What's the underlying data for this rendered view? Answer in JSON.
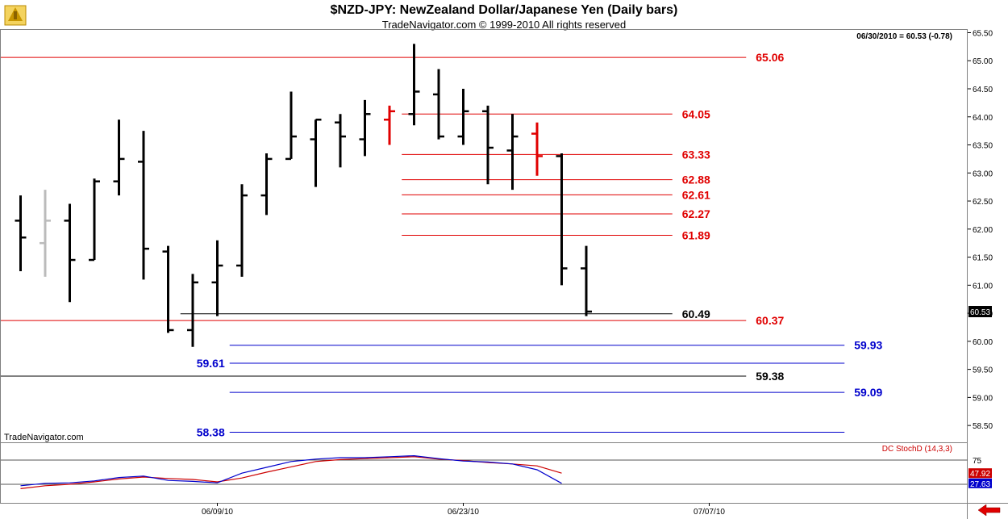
{
  "header": {
    "title": "$NZD-JPY:  NewZealand Dollar/Japanese Yen  (Daily bars)",
    "subtitle": "TradeNavigator.com © 1999-2010 All rights reserved",
    "last_quote": "06/30/2010 = 60.53 (-0.78)",
    "watermark": "TradeNavigator.com"
  },
  "colors": {
    "bar_normal": "#000000",
    "bar_gray": "#bbbbbb",
    "bar_red": "#e00000",
    "level_red": "#e00000",
    "level_blue": "#0000cc",
    "level_black": "#000000",
    "stoch_k": "#0000cc",
    "stoch_d": "#cc0000"
  },
  "chart_data": {
    "type": "ohlc",
    "y_axis": {
      "min": 58.2,
      "max": 65.55,
      "ticks": [
        "58.50",
        "59.00",
        "59.50",
        "60.00",
        "60.50",
        "61.00",
        "61.50",
        "62.00",
        "62.50",
        "63.00",
        "63.50",
        "64.00",
        "64.50",
        "65.00",
        "65.50"
      ]
    },
    "x_axis": {
      "labels": [
        {
          "text": "06/09/10",
          "bar": 8
        },
        {
          "text": "06/23/10",
          "bar": 18
        },
        {
          "text": "07/07/10",
          "bar": 28
        }
      ]
    },
    "last_price_label": "60.53",
    "bars": [
      {
        "o": 62.15,
        "h": 62.6,
        "l": 61.25,
        "c": 61.85,
        "color": "normal"
      },
      {
        "o": 61.75,
        "h": 62.7,
        "l": 61.15,
        "c": 62.15,
        "color": "gray"
      },
      {
        "o": 62.15,
        "h": 62.45,
        "l": 60.7,
        "c": 61.45,
        "color": "normal"
      },
      {
        "o": 61.45,
        "h": 62.9,
        "l": 61.45,
        "c": 62.85,
        "color": "normal"
      },
      {
        "o": 62.85,
        "h": 63.95,
        "l": 62.6,
        "c": 63.25,
        "color": "normal"
      },
      {
        "o": 63.2,
        "h": 63.75,
        "l": 61.1,
        "c": 61.65,
        "color": "normal"
      },
      {
        "o": 61.6,
        "h": 61.7,
        "l": 60.15,
        "c": 60.2,
        "color": "normal"
      },
      {
        "o": 60.2,
        "h": 61.2,
        "l": 59.9,
        "c": 61.05,
        "color": "normal"
      },
      {
        "o": 61.05,
        "h": 61.8,
        "l": 60.45,
        "c": 61.35,
        "color": "normal"
      },
      {
        "o": 61.35,
        "h": 62.8,
        "l": 61.15,
        "c": 62.6,
        "color": "normal"
      },
      {
        "o": 62.6,
        "h": 63.35,
        "l": 62.25,
        "c": 63.25,
        "color": "normal"
      },
      {
        "o": 63.25,
        "h": 64.45,
        "l": 63.25,
        "c": 63.65,
        "color": "normal"
      },
      {
        "o": 63.6,
        "h": 63.95,
        "l": 62.75,
        "c": 63.95,
        "color": "normal"
      },
      {
        "o": 63.9,
        "h": 64.05,
        "l": 63.1,
        "c": 63.65,
        "color": "normal"
      },
      {
        "o": 63.6,
        "h": 64.3,
        "l": 63.3,
        "c": 64.05,
        "color": "normal"
      },
      {
        "o": 63.95,
        "h": 64.2,
        "l": 63.5,
        "c": 64.1,
        "color": "red"
      },
      {
        "o": 64.05,
        "h": 65.3,
        "l": 63.85,
        "c": 64.45,
        "color": "normal"
      },
      {
        "o": 64.4,
        "h": 64.85,
        "l": 63.6,
        "c": 63.65,
        "color": "normal"
      },
      {
        "o": 63.65,
        "h": 64.5,
        "l": 63.5,
        "c": 64.1,
        "color": "normal"
      },
      {
        "o": 64.1,
        "h": 64.2,
        "l": 62.8,
        "c": 63.45,
        "color": "normal"
      },
      {
        "o": 63.4,
        "h": 64.05,
        "l": 62.7,
        "c": 63.65,
        "color": "normal"
      },
      {
        "o": 63.7,
        "h": 63.9,
        "l": 62.95,
        "c": 63.3,
        "color": "red"
      },
      {
        "o": 63.3,
        "h": 63.35,
        "l": 61.0,
        "c": 61.3,
        "color": "normal"
      },
      {
        "o": 61.3,
        "h": 61.7,
        "l": 60.45,
        "c": 60.53,
        "color": "normal"
      }
    ],
    "levels": [
      {
        "value": 65.06,
        "label": "65.06",
        "color": "red",
        "start_bar": -3,
        "end_bar": 30,
        "label_pos": "right"
      },
      {
        "value": 64.05,
        "label": "64.05",
        "color": "red",
        "start_bar": 16,
        "end_bar": 27,
        "label_pos": "right"
      },
      {
        "value": 63.33,
        "label": "63.33",
        "color": "red",
        "start_bar": 16,
        "end_bar": 27,
        "label_pos": "right"
      },
      {
        "value": 62.88,
        "label": "62.88",
        "color": "red",
        "start_bar": 16,
        "end_bar": 27,
        "label_pos": "right"
      },
      {
        "value": 62.61,
        "label": "62.61",
        "color": "red",
        "start_bar": 16,
        "end_bar": 27,
        "label_pos": "right"
      },
      {
        "value": 62.27,
        "label": "62.27",
        "color": "red",
        "start_bar": 16,
        "end_bar": 27,
        "label_pos": "right"
      },
      {
        "value": 61.89,
        "label": "61.89",
        "color": "red",
        "start_bar": 16,
        "end_bar": 27,
        "label_pos": "right"
      },
      {
        "value": 60.49,
        "label": "60.49",
        "color": "black",
        "start_bar": 7,
        "end_bar": 27,
        "label_pos": "right"
      },
      {
        "value": 60.37,
        "label": "60.37",
        "color": "red",
        "start_bar": -3,
        "end_bar": 30,
        "label_pos": "right"
      },
      {
        "value": 59.93,
        "label": "59.93",
        "color": "blue",
        "start_bar": 9,
        "end_bar": 34,
        "label_pos": "right"
      },
      {
        "value": 59.61,
        "label": "59.61",
        "color": "blue",
        "start_bar": 9,
        "end_bar": 34,
        "label_pos": "left"
      },
      {
        "value": 59.38,
        "label": "59.38",
        "color": "black",
        "start_bar": -3,
        "end_bar": 30,
        "label_pos": "right"
      },
      {
        "value": 59.09,
        "label": "59.09",
        "color": "blue",
        "start_bar": 9,
        "end_bar": 34,
        "label_pos": "right"
      },
      {
        "value": 58.38,
        "label": "58.38",
        "color": "blue",
        "start_bar": 9,
        "end_bar": 34,
        "label_pos": "left"
      }
    ],
    "indicator": {
      "name": "DC StochD (14,3,3)",
      "tick": "75",
      "k_label": "27.63",
      "d_label": "47.92",
      "k_values": [
        22,
        27,
        28,
        32,
        39,
        42,
        33,
        31,
        28,
        48,
        60,
        72,
        77,
        80,
        80,
        82,
        84,
        78,
        73,
        71,
        67,
        55,
        27
      ],
      "d_values": [
        16,
        22,
        25,
        30,
        36,
        40,
        37,
        35,
        30,
        38,
        50,
        61,
        72,
        76,
        78,
        80,
        82,
        77,
        74,
        70,
        67,
        63,
        48
      ]
    }
  }
}
